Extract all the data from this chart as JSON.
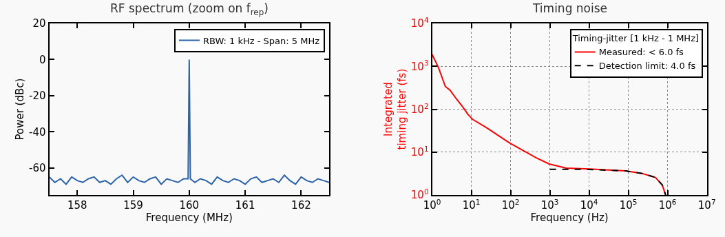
{
  "chart_data": [
    {
      "type": "line",
      "title": "RF spectrum (zoom on f$_{rep}$)",
      "xlabel": "Frequency (MHz)",
      "ylabel": "Power (dBc)",
      "xlim": [
        157.5,
        162.5
      ],
      "ylim": [
        -75,
        20
      ],
      "xticks": [
        158,
        159,
        160,
        161,
        162
      ],
      "yticks": [
        -60,
        -40,
        -20,
        0,
        20
      ],
      "grid": false,
      "legend": "top right",
      "series": [
        {
          "name": "RBW: 1 kHz - Span: 5 MHz",
          "color": "#2b63a8",
          "x": [
            157.5,
            157.6,
            157.7,
            157.8,
            157.9,
            158.0,
            158.1,
            158.2,
            158.3,
            158.4,
            158.5,
            158.6,
            158.7,
            158.8,
            158.9,
            159.0,
            159.1,
            159.2,
            159.3,
            159.4,
            159.5,
            159.6,
            159.7,
            159.8,
            159.9,
            159.98,
            160.0,
            160.02,
            160.1,
            160.2,
            160.3,
            160.4,
            160.5,
            160.6,
            160.7,
            160.8,
            160.9,
            161.0,
            161.1,
            161.2,
            161.3,
            161.4,
            161.5,
            161.6,
            161.7,
            161.8,
            161.9,
            162.0,
            162.1,
            162.2,
            162.3,
            162.4,
            162.5
          ],
          "values": [
            -65,
            -68,
            -66,
            -69,
            -65,
            -67,
            -68,
            -66,
            -65,
            -68,
            -67,
            -69,
            -66,
            -64,
            -68,
            -65,
            -67,
            -68,
            -66,
            -65,
            -69,
            -66,
            -67,
            -68,
            -66,
            -66,
            0,
            -66,
            -68,
            -66,
            -67,
            -69,
            -65,
            -67,
            -68,
            -66,
            -67,
            -69,
            -66,
            -65,
            -68,
            -67,
            -66,
            -68,
            -64,
            -67,
            -69,
            -65,
            -67,
            -68,
            -66,
            -67,
            -68
          ]
        }
      ]
    },
    {
      "type": "line",
      "title": "Timing noise",
      "xlabel": "Frequency (Hz)",
      "ylabel": "Integrated\ntiming jitter (fs)",
      "legend_title": "Timing-jitter [1 kHz - 1 MHz]",
      "log": "xy",
      "xlim": [
        1,
        10000000
      ],
      "ylim": [
        1,
        10000
      ],
      "xticks": [
        {
          "value": 1,
          "label": "10$^{0}$"
        },
        {
          "value": 10,
          "label": "10$^{1}$"
        },
        {
          "value": 100,
          "label": "10$^{2}$"
        },
        {
          "value": 1000,
          "label": "10$^{3}$"
        },
        {
          "value": 10000,
          "label": "10$^{4}$"
        },
        {
          "value": 100000,
          "label": "10$^{5}$"
        },
        {
          "value": 1000000,
          "label": "10$^{6}$"
        },
        {
          "value": 10000000,
          "label": "10$^{7}$"
        }
      ],
      "yticks": [
        {
          "value": 1,
          "label": "10$^{0}$"
        },
        {
          "value": 10,
          "label": "10$^{1}$"
        },
        {
          "value": 100,
          "label": "10$^{2}$"
        },
        {
          "value": 1000,
          "label": "10$^{3}$"
        },
        {
          "value": 10000,
          "label": "10$^{4}$"
        }
      ],
      "grid": true,
      "legend": "top right",
      "series": [
        {
          "name": "Measured: < 6.0 fs",
          "color": "#ff0000",
          "line_style": "solid",
          "x": [
            1,
            1.46,
            2.17,
            2.84,
            4.25,
            5.93,
            8.3,
            10.8,
            24,
            92,
            460,
            960,
            2600,
            10000,
            85000,
            220000,
            490000,
            730000,
            890000
          ],
          "values": [
            1900,
            930,
            340,
            280,
            170,
            116,
            75,
            58,
            37.5,
            16.6,
            7.3,
            5.3,
            4.25,
            4.04,
            3.65,
            3.2,
            2.57,
            1.72,
            1.0
          ]
        },
        {
          "name": "Detection limit: 4.0 fs",
          "color": "#000000",
          "line_style": "dashed",
          "x": [
            1000,
            3000,
            10000,
            85000,
            220000,
            490000,
            730000,
            890000
          ],
          "values": [
            4.0,
            4.0,
            3.95,
            3.65,
            3.2,
            2.57,
            1.72,
            1.0
          ]
        }
      ]
    }
  ]
}
